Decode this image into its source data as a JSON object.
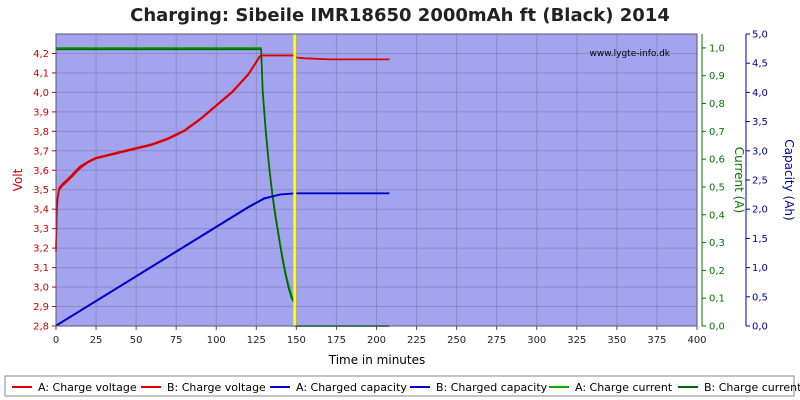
{
  "chart_data": {
    "type": "line",
    "title": "Charging: Sibeile IMR18650 2000mAh ft (Black) 2014",
    "watermark": "www.lygte-info.dk",
    "xlabel": "Time in minutes",
    "ylabel_left": "Volt",
    "ylabel_right1": "Current (A)",
    "ylabel_right2": "Capacity (Ah)",
    "x_range": [
      0,
      400
    ],
    "x_ticks": [
      "0",
      "25",
      "50",
      "75",
      "100",
      "125",
      "150",
      "175",
      "200",
      "225",
      "250",
      "275",
      "300",
      "325",
      "350",
      "375",
      "400"
    ],
    "volt_range": [
      2.8,
      4.3
    ],
    "volt_ticks": [
      "2,8",
      "2,9",
      "3,0",
      "3,1",
      "3,2",
      "3,3",
      "3,4",
      "3,5",
      "3,6",
      "3,7",
      "3,8",
      "3,9",
      "4,0",
      "4,1",
      "4,2"
    ],
    "current_range": [
      0,
      1.05
    ],
    "current_ticks": [
      "0,0",
      "0,1",
      "0,2",
      "0,3",
      "0,4",
      "0,5",
      "0,6",
      "0,7",
      "0,8",
      "0,9",
      "1,0"
    ],
    "capacity_range": [
      0,
      5.0
    ],
    "capacity_ticks": [
      "0,0",
      "0,5",
      "1,0",
      "1,5",
      "2,0",
      "2,5",
      "3,0",
      "3,5",
      "4,0",
      "4,5",
      "5,0"
    ],
    "grid": true,
    "marker_x": 149,
    "colors": {
      "plot_bg": "#a4a4ee",
      "grid": "#8a8ac8",
      "voltage": "#dd0000",
      "capacity": "#0000cc",
      "current": "#007700",
      "marker": "#ffff00",
      "volt_axis": "#cc0000",
      "current_axis": "#007700",
      "capacity_axis": "#000099"
    },
    "series": [
      {
        "name": "A: Charge voltage",
        "axis": "volt",
        "color": "#dd0000",
        "points": [
          [
            0,
            3.18
          ],
          [
            0.5,
            3.38
          ],
          [
            1,
            3.45
          ],
          [
            2,
            3.5
          ],
          [
            4,
            3.52
          ],
          [
            8,
            3.55
          ],
          [
            15,
            3.61
          ],
          [
            20,
            3.64
          ],
          [
            25,
            3.66
          ],
          [
            35,
            3.68
          ],
          [
            50,
            3.71
          ],
          [
            60,
            3.73
          ],
          [
            70,
            3.76
          ],
          [
            80,
            3.8
          ],
          [
            90,
            3.86
          ],
          [
            100,
            3.93
          ],
          [
            110,
            4.0
          ],
          [
            120,
            4.09
          ],
          [
            127,
            4.18
          ],
          [
            128,
            4.19
          ],
          [
            148,
            4.19
          ],
          [
            149,
            4.18
          ],
          [
            155,
            4.175
          ],
          [
            170,
            4.17
          ],
          [
            208,
            4.17
          ]
        ]
      },
      {
        "name": "B: Charge voltage",
        "axis": "volt",
        "color": "#dd0000",
        "points": [
          [
            0,
            3.2
          ],
          [
            0.5,
            3.4
          ],
          [
            1,
            3.46
          ],
          [
            2,
            3.51
          ],
          [
            4,
            3.53
          ],
          [
            8,
            3.56
          ],
          [
            15,
            3.62
          ],
          [
            20,
            3.645
          ],
          [
            25,
            3.665
          ],
          [
            35,
            3.685
          ],
          [
            50,
            3.715
          ],
          [
            60,
            3.735
          ],
          [
            70,
            3.765
          ],
          [
            80,
            3.805
          ],
          [
            90,
            3.865
          ],
          [
            100,
            3.935
          ],
          [
            110,
            4.005
          ],
          [
            120,
            4.095
          ],
          [
            127,
            4.185
          ],
          [
            128,
            4.19
          ],
          [
            148,
            4.19
          ],
          [
            149,
            4.18
          ],
          [
            155,
            4.175
          ],
          [
            170,
            4.17
          ],
          [
            208,
            4.17
          ]
        ]
      },
      {
        "name": "A: Charged capacity",
        "axis": "capacity",
        "color": "#0000cc",
        "points": [
          [
            0,
            0
          ],
          [
            120,
            2.03
          ],
          [
            130,
            2.18
          ],
          [
            140,
            2.25
          ],
          [
            150,
            2.27
          ],
          [
            170,
            2.27
          ],
          [
            208,
            2.27
          ]
        ]
      },
      {
        "name": "B: Charged capacity",
        "axis": "capacity",
        "color": "#0000cc",
        "points": [
          [
            0,
            0.01
          ],
          [
            120,
            2.04
          ],
          [
            130,
            2.19
          ],
          [
            140,
            2.255
          ],
          [
            150,
            2.275
          ],
          [
            170,
            2.275
          ],
          [
            208,
            2.275
          ]
        ]
      },
      {
        "name": "A: Charge current",
        "axis": "current",
        "color": "#00aa00",
        "points": [
          [
            0,
            1.0
          ],
          [
            128,
            1.0
          ],
          [
            129,
            0.85
          ],
          [
            131,
            0.7
          ],
          [
            133,
            0.58
          ],
          [
            135,
            0.48
          ],
          [
            137,
            0.4
          ],
          [
            139,
            0.33
          ],
          [
            141,
            0.26
          ],
          [
            143,
            0.2
          ],
          [
            145,
            0.15
          ],
          [
            147,
            0.11
          ],
          [
            149,
            0.09
          ],
          [
            149.2,
            0
          ],
          [
            208,
            0
          ]
        ]
      },
      {
        "name": "B: Charge current",
        "axis": "current",
        "color": "#006600",
        "points": [
          [
            0,
            0.995
          ],
          [
            128,
            0.995
          ],
          [
            129,
            0.84
          ],
          [
            131,
            0.69
          ],
          [
            133,
            0.57
          ],
          [
            135,
            0.47
          ],
          [
            137,
            0.39
          ],
          [
            139,
            0.32
          ],
          [
            141,
            0.25
          ],
          [
            143,
            0.19
          ],
          [
            145,
            0.14
          ],
          [
            147,
            0.1
          ],
          [
            149,
            0.08
          ],
          [
            149.2,
            0
          ],
          [
            208,
            0
          ]
        ]
      }
    ]
  }
}
